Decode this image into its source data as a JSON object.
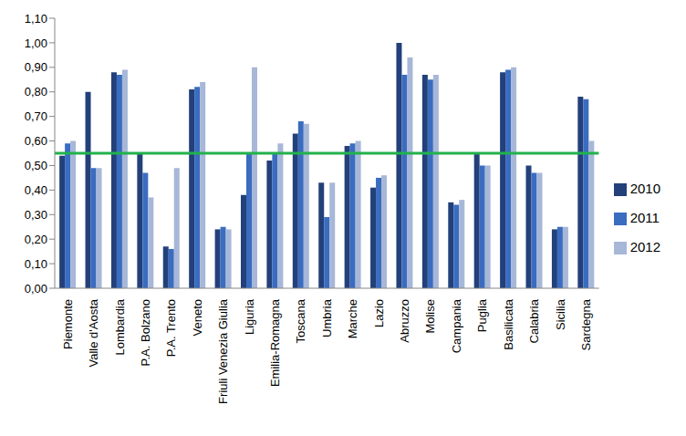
{
  "chart_data": {
    "type": "bar",
    "categories": [
      "Piemonte",
      "Valle d'Aosta",
      "Lombardia",
      "P.A. Bolzano",
      "P.A. Trento",
      "Veneto",
      "Friuli Venezia Giulia",
      "Liguria",
      "Emilia-Romagna",
      "Toscana",
      "Umbria",
      "Marche",
      "Lazio",
      "Abruzzo",
      "Molise",
      "Campania",
      "Puglia",
      "Basilicata",
      "Calabria",
      "Sicilia",
      "Sardegna"
    ],
    "series": [
      {
        "name": "2010",
        "color": "#23407a",
        "values": [
          0.54,
          0.8,
          0.88,
          0.55,
          0.17,
          0.81,
          0.24,
          0.38,
          0.52,
          0.63,
          0.43,
          0.58,
          0.41,
          1.0,
          0.87,
          0.35,
          0.55,
          0.88,
          0.5,
          0.24,
          0.78
        ]
      },
      {
        "name": "2011",
        "color": "#3a6cc0",
        "values": [
          0.59,
          0.49,
          0.87,
          0.47,
          0.16,
          0.82,
          0.25,
          0.55,
          0.55,
          0.68,
          0.29,
          0.59,
          0.45,
          0.87,
          0.85,
          0.34,
          0.5,
          0.89,
          0.47,
          0.25,
          0.77
        ]
      },
      {
        "name": "2012",
        "color": "#a7b7d8",
        "values": [
          0.6,
          0.49,
          0.89,
          0.37,
          0.49,
          0.84,
          0.24,
          0.9,
          0.59,
          0.67,
          0.43,
          0.6,
          0.46,
          0.94,
          0.87,
          0.36,
          0.5,
          0.9,
          0.47,
          0.25,
          0.6
        ]
      }
    ],
    "threshold": 0.55,
    "ylim": [
      0,
      1.1
    ],
    "yticks": [
      {
        "value": 0,
        "label": "0,00"
      },
      {
        "value": 0.1,
        "label": "0,10"
      },
      {
        "value": 0.2,
        "label": "0,20"
      },
      {
        "value": 0.3,
        "label": "0,30"
      },
      {
        "value": 0.4,
        "label": "0,40"
      },
      {
        "value": 0.5,
        "label": "0,50"
      },
      {
        "value": 0.6,
        "label": "0,60"
      },
      {
        "value": 0.7,
        "label": "0,70"
      },
      {
        "value": 0.8,
        "label": "0,80"
      },
      {
        "value": 0.9,
        "label": "0,90"
      },
      {
        "value": 1.0,
        "label": "1,00"
      },
      {
        "value": 1.1,
        "label": "1,10"
      }
    ],
    "grid": false,
    "legend": "right"
  }
}
